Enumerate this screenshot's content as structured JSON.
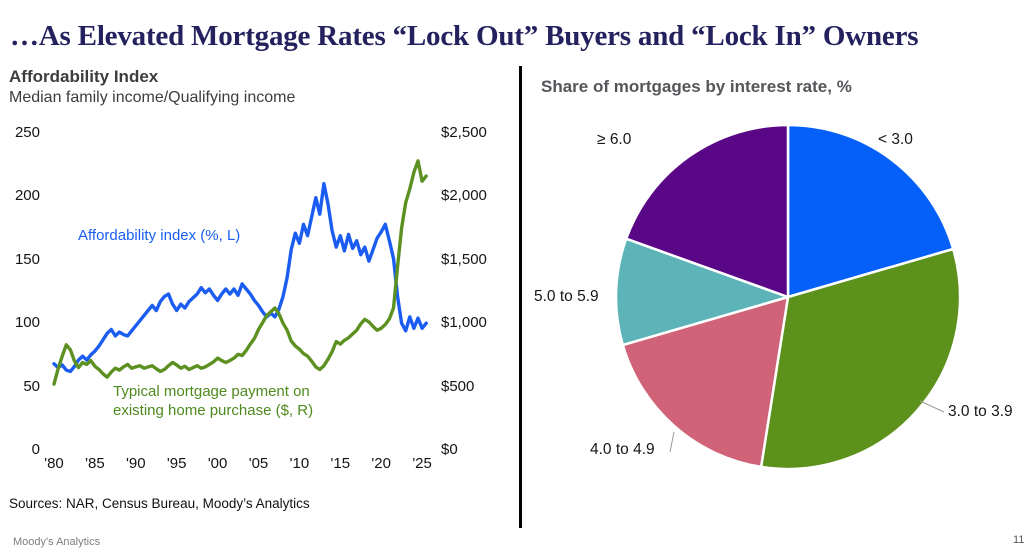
{
  "slide": {
    "title": "…As Elevated Mortgage Rates “Lock Out” Buyers and “Lock In” Owners",
    "sources": "Sources: NAR, Census Bureau, Moody’s Analytics",
    "footer_brand": "Moody's Analytics",
    "page_number": "11"
  },
  "left_chart": {
    "title": "Affordability Index",
    "subtitle": "Median family income/Qualifying income",
    "blue_label": "Affordability index (%, L)",
    "green_label_line1": "Typical mortgage payment on",
    "green_label_line2": "existing home purchase ($, R)"
  },
  "right_chart": {
    "title": "Share of mortgages by interest rate, %"
  },
  "chart_data": [
    {
      "type": "line",
      "title": "Affordability Index",
      "subtitle": "Median family income/Qualifying income",
      "x_range": [
        1980,
        2025.5
      ],
      "x_step": 0.5,
      "x_ticks": [
        "'80",
        "'85",
        "'90",
        "'95",
        "'00",
        "'05",
        "'10",
        "'15",
        "'20",
        "'25"
      ],
      "x_tick_years": [
        1980,
        1985,
        1990,
        1995,
        2000,
        2005,
        2010,
        2015,
        2020,
        2025
      ],
      "y_left": {
        "min": 0,
        "max": 250,
        "tick_step": 50,
        "ticks": [
          "250",
          "200",
          "150",
          "100",
          "50",
          "0"
        ]
      },
      "y_right": {
        "min": 0,
        "max": 2500,
        "tick_step": 500,
        "ticks": [
          "$2,500",
          "$2,000",
          "$1,500",
          "$1,000",
          "$500",
          "$0"
        ]
      },
      "grid": false,
      "series": [
        {
          "name": "Affordability index (%, L)",
          "axis": "left",
          "color": "#1b5df0",
          "values": [
            68,
            65,
            67,
            63,
            62,
            66,
            71,
            74,
            71,
            75,
            78,
            82,
            87,
            92,
            95,
            90,
            93,
            91,
            90,
            94,
            98,
            102,
            106,
            110,
            114,
            110,
            117,
            121,
            123,
            115,
            110,
            115,
            112,
            117,
            120,
            123,
            128,
            124,
            127,
            122,
            118,
            123,
            127,
            123,
            127,
            122,
            131,
            127,
            123,
            118,
            114,
            109,
            105,
            108,
            105,
            111,
            121,
            136,
            158,
            171,
            163,
            178,
            169,
            184,
            199,
            186,
            210,
            194,
            173,
            160,
            169,
            157,
            170,
            159,
            165,
            154,
            160,
            149,
            158,
            167,
            172,
            178,
            165,
            151,
            121,
            100,
            94,
            105,
            96,
            104,
            96,
            100
          ]
        },
        {
          "name": "Typical mortgage payment on existing home purchase ($, R)",
          "axis": "right",
          "color": "#5c9122",
          "values": [
            520,
            640,
            740,
            830,
            790,
            700,
            650,
            690,
            675,
            705,
            660,
            635,
            600,
            575,
            615,
            645,
            630,
            655,
            675,
            645,
            655,
            665,
            645,
            655,
            665,
            640,
            620,
            635,
            665,
            690,
            670,
            645,
            660,
            635,
            650,
            665,
            645,
            655,
            675,
            695,
            725,
            705,
            690,
            705,
            725,
            755,
            745,
            785,
            835,
            880,
            950,
            1005,
            1060,
            1090,
            1120,
            1075,
            1000,
            945,
            860,
            820,
            795,
            760,
            740,
            700,
            655,
            635,
            665,
            715,
            775,
            855,
            835,
            865,
            885,
            915,
            945,
            995,
            1030,
            1010,
            975,
            945,
            960,
            990,
            1035,
            1120,
            1450,
            1750,
            1950,
            2060,
            2190,
            2280,
            2120,
            2160
          ]
        }
      ]
    },
    {
      "type": "pie",
      "title": "Share of mortgages by interest rate, %",
      "start_angle_deg": 0,
      "direction": "clockwise",
      "slices": [
        {
          "label": "< 3.0",
          "value": 20.5,
          "color": "#0560fa"
        },
        {
          "label": "3.0 to 3.9",
          "value": 32.0,
          "color": "#5c911c"
        },
        {
          "label": "4.0 to 4.9",
          "value": 18.0,
          "color": "#d06378"
        },
        {
          "label": "5.0 to 5.9",
          "value": 10.0,
          "color": "#5cb4b8"
        },
        {
          "label": "≥ 6.0",
          "value": 19.5,
          "color": "#5a0787"
        }
      ]
    }
  ]
}
